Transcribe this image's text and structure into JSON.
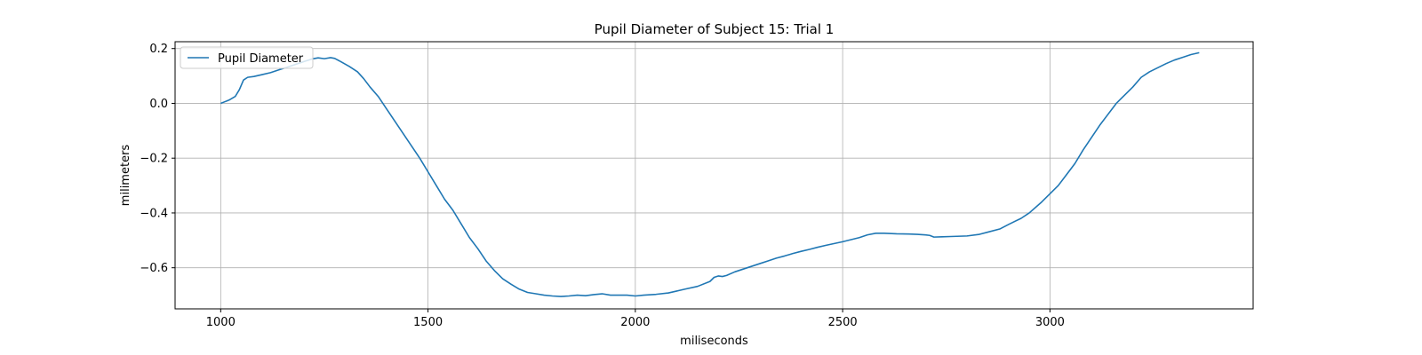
{
  "chart_data": {
    "type": "line",
    "title": "Pupil Diameter of Subject 15: Trial 1",
    "xlabel": "miliseconds",
    "ylabel": "milimeters",
    "xlim": [
      890,
      3490
    ],
    "ylim": [
      -0.75,
      0.225
    ],
    "xticks": [
      1000,
      1500,
      2000,
      2500,
      3000
    ],
    "yticks": [
      0.2,
      0.0,
      -0.2,
      -0.4,
      -0.6
    ],
    "xtick_labels": [
      "1000",
      "1500",
      "2000",
      "2500",
      "3000"
    ],
    "ytick_labels": [
      "0.2",
      "0.0",
      "−0.2",
      "−0.4",
      "−0.6"
    ],
    "grid": true,
    "legend": {
      "position": "top-left",
      "entries": [
        "Pupil Diameter"
      ]
    },
    "colors": {
      "line": "#1f77b4",
      "grid": "#b0b0b0",
      "axes": "#000000"
    },
    "series": [
      {
        "name": "Pupil Diameter",
        "x": [
          1000,
          1020,
          1035,
          1045,
          1055,
          1065,
          1080,
          1100,
          1120,
          1140,
          1160,
          1180,
          1200,
          1220,
          1235,
          1250,
          1265,
          1275,
          1290,
          1310,
          1330,
          1345,
          1360,
          1380,
          1400,
          1420,
          1440,
          1460,
          1480,
          1500,
          1520,
          1540,
          1560,
          1580,
          1600,
          1620,
          1640,
          1660,
          1680,
          1700,
          1720,
          1740,
          1760,
          1780,
          1800,
          1820,
          1840,
          1860,
          1880,
          1900,
          1920,
          1940,
          1960,
          1980,
          2000,
          2020,
          2050,
          2080,
          2100,
          2120,
          2150,
          2180,
          2190,
          2200,
          2210,
          2220,
          2240,
          2270,
          2300,
          2320,
          2340,
          2360,
          2380,
          2400,
          2420,
          2440,
          2460,
          2500,
          2540,
          2560,
          2580,
          2600,
          2630,
          2660,
          2680,
          2700,
          2710,
          2720,
          2740,
          2760,
          2800,
          2830,
          2850,
          2880,
          2900,
          2930,
          2950,
          2980,
          3000,
          3020,
          3040,
          3060,
          3080,
          3100,
          3120,
          3140,
          3160,
          3180,
          3200,
          3220,
          3240,
          3260,
          3280,
          3300,
          3320,
          3340,
          3360
        ],
        "y": [
          0.0,
          0.012,
          0.025,
          0.05,
          0.085,
          0.095,
          0.098,
          0.105,
          0.112,
          0.122,
          0.132,
          0.142,
          0.152,
          0.162,
          0.166,
          0.163,
          0.167,
          0.164,
          0.152,
          0.135,
          0.115,
          0.09,
          0.06,
          0.025,
          -0.02,
          -0.065,
          -0.11,
          -0.155,
          -0.2,
          -0.25,
          -0.3,
          -0.35,
          -0.39,
          -0.44,
          -0.49,
          -0.53,
          -0.575,
          -0.61,
          -0.64,
          -0.66,
          -0.678,
          -0.69,
          -0.695,
          -0.7,
          -0.703,
          -0.705,
          -0.703,
          -0.7,
          -0.702,
          -0.698,
          -0.695,
          -0.7,
          -0.7,
          -0.7,
          -0.703,
          -0.7,
          -0.697,
          -0.692,
          -0.685,
          -0.678,
          -0.668,
          -0.65,
          -0.635,
          -0.63,
          -0.632,
          -0.628,
          -0.615,
          -0.6,
          -0.585,
          -0.575,
          -0.565,
          -0.557,
          -0.548,
          -0.54,
          -0.533,
          -0.525,
          -0.518,
          -0.505,
          -0.49,
          -0.48,
          -0.474,
          -0.474,
          -0.476,
          -0.477,
          -0.478,
          -0.48,
          -0.482,
          -0.488,
          -0.487,
          -0.486,
          -0.484,
          -0.478,
          -0.47,
          -0.458,
          -0.442,
          -0.42,
          -0.4,
          -0.36,
          -0.33,
          -0.3,
          -0.26,
          -0.22,
          -0.17,
          -0.125,
          -0.08,
          -0.04,
          0.0,
          0.03,
          0.06,
          0.095,
          0.115,
          0.13,
          0.145,
          0.158,
          0.168,
          0.178,
          0.185
        ]
      }
    ]
  }
}
